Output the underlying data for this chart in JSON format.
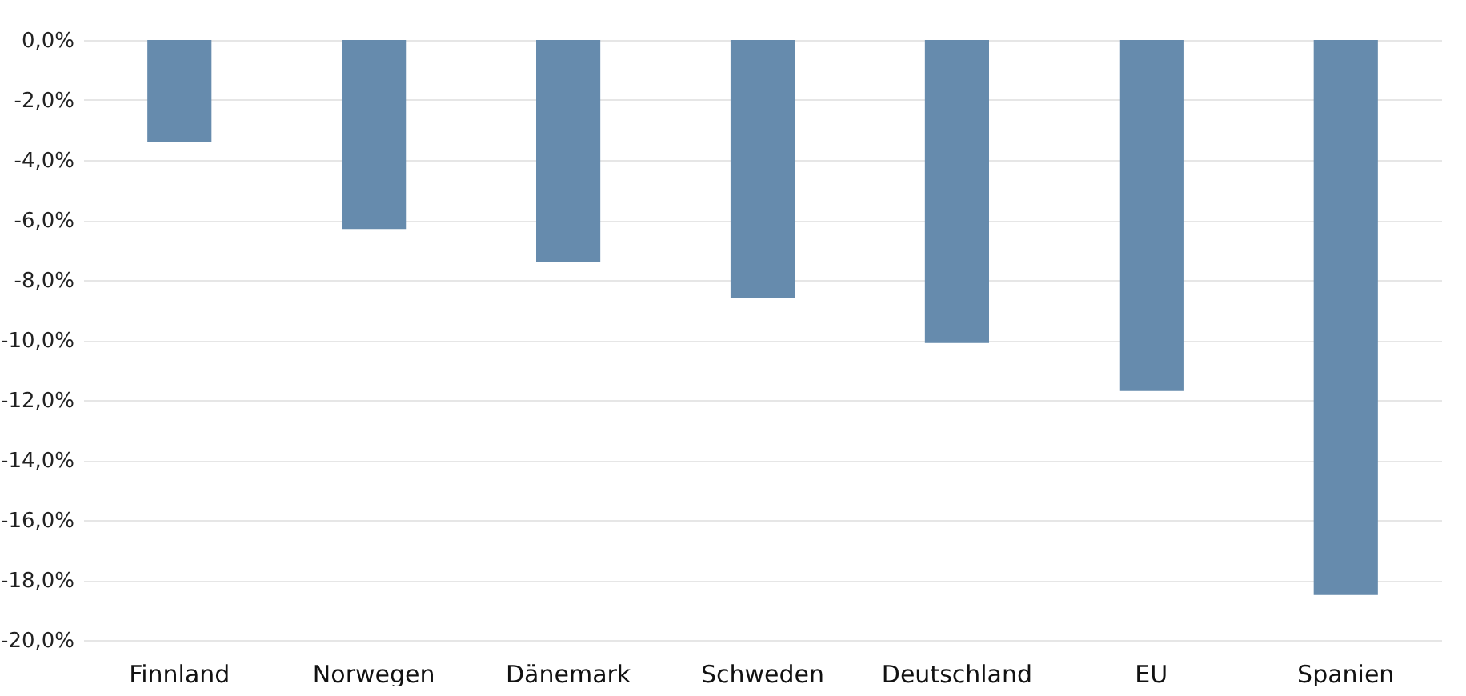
{
  "chart_data": {
    "type": "bar",
    "categories": [
      "Finnland",
      "Norwegen",
      "Dänemark",
      "Schweden",
      "Deutschland",
      "EU",
      "Spanien"
    ],
    "values": [
      -3.4,
      -6.3,
      -7.4,
      -8.6,
      -10.1,
      -11.7,
      -18.5
    ],
    "color": "#668bad",
    "ylim": [
      -20,
      0
    ],
    "yticks": [
      {
        "value": 0,
        "label": "0,0%"
      },
      {
        "value": -2,
        "label": "-2,0%"
      },
      {
        "value": -4,
        "label": "-4,0%"
      },
      {
        "value": -6,
        "label": "-6,0%"
      },
      {
        "value": -8,
        "label": "-8,0%"
      },
      {
        "value": -10,
        "label": "-10,0%"
      },
      {
        "value": -12,
        "label": "-12,0%"
      },
      {
        "value": -14,
        "label": "-14,0%"
      },
      {
        "value": -16,
        "label": "-16,0%"
      },
      {
        "value": -18,
        "label": "-18,0%"
      },
      {
        "value": -20,
        "label": "-20,0%"
      }
    ],
    "grid": "y"
  }
}
